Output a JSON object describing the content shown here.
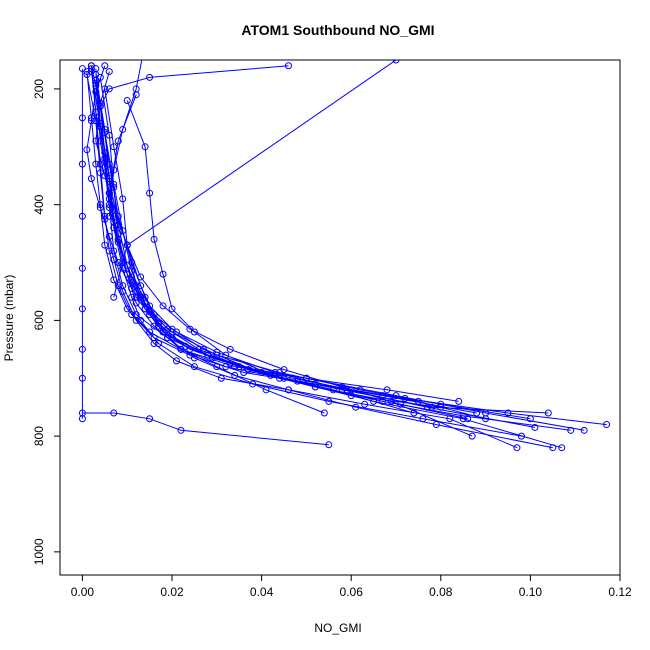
{
  "chart_data": {
    "type": "line",
    "title": "ATOM1 Southbound NO_GMI",
    "xlabel": "NO_GMI",
    "ylabel": "Pressure (mbar)",
    "xlim": [
      -0.005,
      0.12
    ],
    "ylim": [
      1040,
      150
    ],
    "y_reversed": true,
    "xticks": [
      0.0,
      0.02,
      0.04,
      0.06,
      0.08,
      0.1,
      0.12
    ],
    "xtick_labels": [
      "0.00",
      "0.02",
      "0.04",
      "0.06",
      "0.08",
      "0.10",
      "0.12"
    ],
    "yticks": [
      200,
      400,
      600,
      800,
      1000
    ],
    "ytick_labels": [
      "200",
      "400",
      "600",
      "800",
      "1000"
    ],
    "grid": false,
    "legend": "none",
    "color": "#0000ff",
    "series": [
      {
        "x": [
          0.0,
          0.0,
          0.0,
          0.0,
          0.0,
          0.0,
          0.0,
          0.0,
          0.0
        ],
        "y": [
          165,
          250,
          330,
          420,
          510,
          580,
          650,
          700,
          770
        ]
      },
      {
        "x": [
          0.002,
          0.003,
          0.004,
          0.005,
          0.006,
          0.008,
          0.011,
          0.016,
          0.024,
          0.036,
          0.052,
          0.072,
          0.095,
          0.117
        ],
        "y": [
          160,
          240,
          330,
          420,
          480,
          540,
          590,
          630,
          660,
          690,
          710,
          735,
          760,
          780
        ]
      },
      {
        "x": [
          0.003,
          0.004,
          0.006,
          0.007,
          0.009,
          0.012,
          0.018,
          0.028,
          0.045,
          0.065,
          0.085,
          0.107
        ],
        "y": [
          165,
          260,
          350,
          430,
          500,
          560,
          620,
          660,
          700,
          740,
          770,
          820
        ]
      },
      {
        "x": [
          0.001,
          0.002,
          0.003,
          0.004,
          0.005,
          0.007,
          0.01,
          0.015,
          0.022,
          0.034,
          0.05,
          0.07,
          0.09,
          0.112
        ],
        "y": [
          170,
          250,
          330,
          400,
          470,
          530,
          580,
          620,
          650,
          680,
          700,
          730,
          760,
          790
        ]
      },
      {
        "x": [
          0.002,
          0.004,
          0.005,
          0.006,
          0.008,
          0.01,
          0.014,
          0.02,
          0.03,
          0.044,
          0.062,
          0.08,
          0.1
        ],
        "y": [
          160,
          230,
          310,
          390,
          460,
          520,
          580,
          620,
          660,
          690,
          720,
          745,
          770
        ]
      },
      {
        "x": [
          0.003,
          0.005,
          0.006,
          0.007,
          0.009,
          0.011,
          0.013,
          0.017,
          0.025,
          0.038,
          0.055,
          0.076,
          0.098
        ],
        "y": [
          175,
          270,
          360,
          440,
          510,
          560,
          600,
          640,
          680,
          710,
          740,
          770,
          800
        ]
      },
      {
        "x": [
          0.004,
          0.006,
          0.007,
          0.008,
          0.01,
          0.012,
          0.016,
          0.022,
          0.032,
          0.048,
          0.067,
          0.088
        ],
        "y": [
          180,
          280,
          370,
          450,
          520,
          570,
          610,
          650,
          680,
          705,
          730,
          760
        ]
      },
      {
        "x": [
          0.002,
          0.003,
          0.005,
          0.006,
          0.007,
          0.009,
          0.012,
          0.019,
          0.029,
          0.042,
          0.058,
          0.078,
          0.104
        ],
        "y": [
          165,
          240,
          320,
          400,
          480,
          540,
          590,
          630,
          665,
          695,
          720,
          750,
          760
        ]
      },
      {
        "x": [
          0.003,
          0.004,
          0.006,
          0.008,
          0.011,
          0.014,
          0.018,
          0.024,
          0.035,
          0.05,
          0.068,
          0.084
        ],
        "y": [
          190,
          290,
          380,
          460,
          530,
          580,
          620,
          650,
          680,
          700,
          720,
          740
        ]
      },
      {
        "x": [
          0.001,
          0.003,
          0.004,
          0.005,
          0.007,
          0.009,
          0.012,
          0.016,
          0.021,
          0.031,
          0.046,
          0.063,
          0.082,
          0.097
        ],
        "y": [
          175,
          255,
          345,
          425,
          495,
          550,
          600,
          640,
          670,
          700,
          720,
          745,
          770,
          820
        ]
      },
      {
        "x": [
          0.005,
          0.007,
          0.009,
          0.01,
          0.012,
          0.015,
          0.02,
          0.028,
          0.04,
          0.056,
          0.074
        ],
        "y": [
          200,
          300,
          390,
          470,
          540,
          590,
          630,
          660,
          690,
          720,
          760
        ]
      },
      {
        "x": [
          0.002,
          0.004,
          0.006,
          0.008,
          0.01,
          0.013,
          0.017,
          0.023,
          0.033,
          0.047,
          0.06,
          0.075,
          0.09
        ],
        "y": [
          170,
          265,
          355,
          435,
          505,
          560,
          605,
          645,
          675,
          700,
          720,
          740,
          770
        ]
      },
      {
        "x": [
          0.004,
          0.006,
          0.008,
          0.011,
          0.014,
          0.017,
          0.022,
          0.03,
          0.041,
          0.054
        ],
        "y": [
          230,
          330,
          420,
          500,
          560,
          610,
          650,
          680,
          720,
          760
        ]
      },
      {
        "x": [
          0.003,
          0.005,
          0.007,
          0.009,
          0.011,
          0.014,
          0.019,
          0.026,
          0.037,
          0.052,
          0.069,
          0.087
        ],
        "y": [
          185,
          275,
          365,
          445,
          515,
          570,
          615,
          650,
          685,
          715,
          740,
          800
        ]
      },
      {
        "x": [
          0.01,
          0.014,
          0.015,
          0.016,
          0.018,
          0.02,
          0.025,
          0.032,
          0.044,
          0.06,
          0.08
        ],
        "y": [
          220,
          300,
          380,
          460,
          520,
          580,
          620,
          660,
          700,
          730,
          750
        ]
      },
      {
        "x": [
          0.012,
          0.008,
          0.006,
          0.01,
          0.013,
          0.016,
          0.019,
          0.025,
          0.034,
          0.046,
          0.061,
          0.079,
          0.105
        ],
        "y": [
          210,
          290,
          380,
          470,
          540,
          590,
          630,
          665,
          695,
          720,
          750,
          780,
          820
        ]
      },
      {
        "x": [
          0.0,
          0.007,
          0.015,
          0.022,
          0.055
        ],
        "y": [
          760,
          760,
          770,
          790,
          815
        ]
      },
      {
        "x": [
          0.046,
          0.015,
          0.006,
          0.004
        ],
        "y": [
          160,
          180,
          200,
          230
        ]
      },
      {
        "x": [
          0.07,
          0.01,
          0.007
        ],
        "y": [
          150,
          470,
          560
        ]
      },
      {
        "x": [
          0.014,
          0.012,
          0.009,
          0.007,
          0.006
        ],
        "y": [
          120,
          200,
          270,
          340,
          420
        ]
      },
      {
        "x": [
          0.005,
          0.003,
          0.002,
          0.001,
          0.002,
          0.004,
          0.006,
          0.008,
          0.011,
          0.015,
          0.021,
          0.03,
          0.043,
          0.059,
          0.077,
          0.101
        ],
        "y": [
          160,
          205,
          255,
          305,
          355,
          405,
          455,
          500,
          545,
          585,
          620,
          655,
          690,
          720,
          750,
          785
        ]
      },
      {
        "x": [
          0.006,
          0.004,
          0.003,
          0.005,
          0.007,
          0.01,
          0.013,
          0.018,
          0.024,
          0.033,
          0.045,
          0.058,
          0.071,
          0.086
        ],
        "y": [
          170,
          225,
          290,
          350,
          410,
          470,
          525,
          575,
          615,
          650,
          685,
          715,
          745,
          770
        ]
      },
      {
        "x": [
          0.003,
          0.004,
          0.005,
          0.006,
          0.008,
          0.011,
          0.015,
          0.02,
          0.027,
          0.038,
          0.052,
          0.067,
          0.085,
          0.109
        ],
        "y": [
          195,
          265,
          335,
          405,
          465,
          525,
          575,
          615,
          650,
          685,
          715,
          740,
          765,
          790
        ]
      }
    ]
  }
}
